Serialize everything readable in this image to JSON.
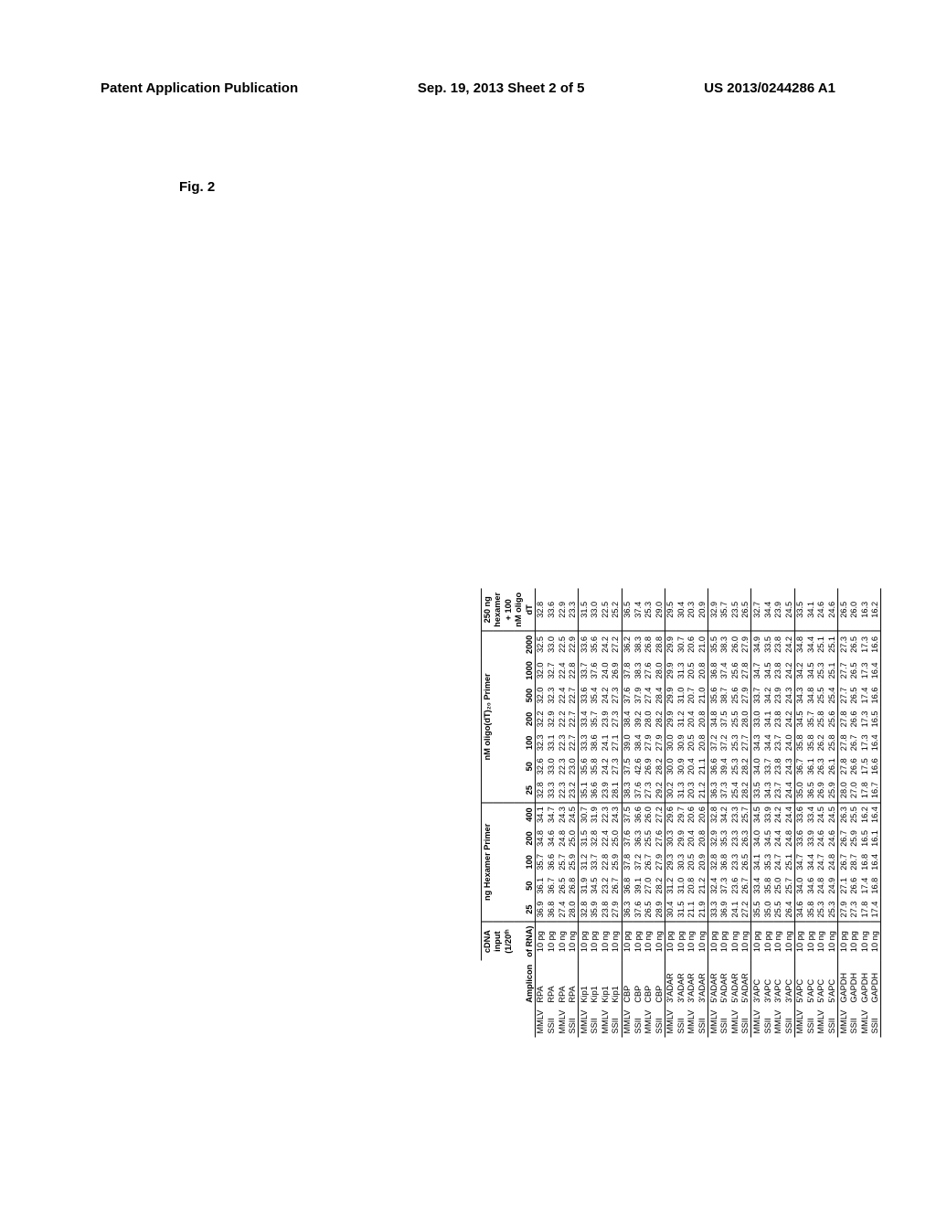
{
  "header": {
    "left": "Patent Application Publication",
    "center": "Sep. 19, 2013  Sheet 2 of 5",
    "right": "US 2013/0244286 A1"
  },
  "figure_label": "Fig. 2",
  "table": {
    "section_headers": {
      "hexamer": "ng Hexamer Primer",
      "oligo": "nM oligo(dT)₂₀ Primer",
      "combo_line1": "250 ng",
      "combo_line2": "hexamer",
      "combo_line3": "+ 100",
      "combo_line4": "nM oligo"
    },
    "col_labels": {
      "enzyme": "",
      "amplicon": "Amplicon",
      "input_l1": "cDNA",
      "input_l2": "input",
      "input_l3": "(1/20ᵗʰ",
      "input_l4": "of RNA)",
      "hex": [
        "25",
        "50",
        "100",
        "200",
        "400"
      ],
      "oligo": [
        "25",
        "50",
        "100",
        "200",
        "500",
        "1000",
        "2000"
      ],
      "combo": "dT"
    },
    "groups": [
      {
        "rows": [
          {
            "e": "MMLV",
            "a": "RPA",
            "i": "10 pg",
            "h": [
              "36.9",
              "36.1",
              "35.7",
              "34.8",
              "34.1"
            ],
            "o": [
              "32.8",
              "32.6",
              "32.3",
              "32.2",
              "32.0",
              "32.0",
              "32.5"
            ],
            "c": "32.8"
          },
          {
            "e": "SSII",
            "a": "RPA",
            "i": "10 pg",
            "h": [
              "36.8",
              "36.7",
              "36.6",
              "34.6",
              "34.7"
            ],
            "o": [
              "33.3",
              "33.0",
              "33.1",
              "32.9",
              "32.3",
              "32.7",
              "33.0"
            ],
            "c": "33.6"
          },
          {
            "e": "MMLV",
            "a": "RPA",
            "i": "10 ng",
            "h": [
              "27.4",
              "26.5",
              "25.7",
              "24.8",
              "24.3"
            ],
            "o": [
              "22.3",
              "22.3",
              "22.3",
              "22.2",
              "22.4",
              "22.4",
              "22.5"
            ],
            "c": "22.9"
          },
          {
            "e": "SSII",
            "a": "RPA",
            "i": "10 ng",
            "h": [
              "28.0",
              "26.8",
              "25.9",
              "25.0",
              "24.5"
            ],
            "o": [
              "23.2",
              "23.0",
              "22.7",
              "22.7",
              "22.7",
              "22.8",
              "22.9"
            ],
            "c": "23.3"
          }
        ]
      },
      {
        "rows": [
          {
            "e": "MMLV",
            "a": "Kip1",
            "i": "10 pg",
            "h": [
              "32.8",
              "31.9",
              "31.2",
              "31.5",
              "30.7"
            ],
            "o": [
              "35.1",
              "35.6",
              "33.3",
              "33.4",
              "33.6",
              "33.7",
              "33.6"
            ],
            "c": "31.5"
          },
          {
            "e": "SSII",
            "a": "Kip1",
            "i": "10 pg",
            "h": [
              "35.9",
              "34.5",
              "33.7",
              "32.8",
              "31.9"
            ],
            "o": [
              "36.6",
              "35.8",
              "38.6",
              "35.7",
              "35.4",
              "37.6",
              "35.6"
            ],
            "c": "33.0"
          },
          {
            "e": "MMLV",
            "a": "Kip1",
            "i": "10 ng",
            "h": [
              "23.8",
              "23.2",
              "22.8",
              "22.4",
              "22.3"
            ],
            "o": [
              "23.9",
              "24.2",
              "24.1",
              "23.9",
              "24.2",
              "24.0",
              "24.2"
            ],
            "c": "22.5"
          },
          {
            "e": "SSII",
            "a": "Kip1",
            "i": "10 ng",
            "h": [
              "27.9",
              "26.7",
              "25.9",
              "25.0",
              "24.3"
            ],
            "o": [
              "28.1",
              "27.3",
              "27.1",
              "27.3",
              "27.3",
              "26.9",
              "27.2"
            ],
            "c": "25.2"
          }
        ]
      },
      {
        "rows": [
          {
            "e": "MMLV",
            "a": "CBP",
            "i": "10 pg",
            "h": [
              "36.3",
              "36.8",
              "37.8",
              "37.6",
              "37.5"
            ],
            "o": [
              "38.3",
              "37.5",
              "39.0",
              "38.4",
              "37.6",
              "37.8",
              "36.2"
            ],
            "c": "36.5"
          },
          {
            "e": "SSII",
            "a": "CBP",
            "i": "10 pg",
            "h": [
              "37.6",
              "39.1",
              "37.2",
              "36.3",
              "36.6"
            ],
            "o": [
              "37.6",
              "42.6",
              "38.4",
              "39.2",
              "37.9",
              "38.3",
              "38.3"
            ],
            "c": "37.4"
          },
          {
            "e": "MMLV",
            "a": "CBP",
            "i": "10 ng",
            "h": [
              "26.5",
              "27.0",
              "26.7",
              "25.5",
              "26.0"
            ],
            "o": [
              "27.3",
              "26.9",
              "27.9",
              "28.0",
              "27.4",
              "27.6",
              "26.8"
            ],
            "c": "25.3"
          },
          {
            "e": "SSII",
            "a": "CBP",
            "i": "10 ng",
            "h": [
              "28.9",
              "28.2",
              "27.9",
              "27.6",
              "27.2"
            ],
            "o": [
              "29.2",
              "28.2",
              "27.9",
              "28.2",
              "28.4",
              "28.0",
              "28.8"
            ],
            "c": "29.0"
          }
        ]
      },
      {
        "rows": [
          {
            "e": "MMLV",
            "a": "3'ADAR",
            "i": "10 pg",
            "h": [
              "30.4",
              "31.2",
              "29.3",
              "30.3",
              "29.6"
            ],
            "o": [
              "30.2",
              "30.0",
              "30.0",
              "29.9",
              "29.9",
              "29.9",
              "29.9"
            ],
            "c": "29.5"
          },
          {
            "e": "SSII",
            "a": "3'ADAR",
            "i": "10 pg",
            "h": [
              "31.5",
              "31.0",
              "30.3",
              "29.9",
              "29.7"
            ],
            "o": [
              "31.3",
              "30.9",
              "30.9",
              "31.2",
              "31.0",
              "31.3",
              "30.7"
            ],
            "c": "30.4"
          },
          {
            "e": "MMLV",
            "a": "3'ADAR",
            "i": "10 ng",
            "h": [
              "21.1",
              "20.8",
              "20.5",
              "20.4",
              "20.6"
            ],
            "o": [
              "20.3",
              "20.4",
              "20.5",
              "20.4",
              "20.7",
              "20.5",
              "20.6"
            ],
            "c": "20.3"
          },
          {
            "e": "SSII",
            "a": "3'ADAR",
            "i": "10 ng",
            "h": [
              "21.9",
              "21.2",
              "20.9",
              "20.8",
              "20.6"
            ],
            "o": [
              "21.2",
              "21.1",
              "20.8",
              "20.8",
              "21.0",
              "20.8",
              "21.0"
            ],
            "c": "20.9"
          }
        ]
      },
      {
        "rows": [
          {
            "e": "MMLV",
            "a": "5'ADAR",
            "i": "10 pg",
            "h": [
              "33.3",
              "32.4",
              "32.8",
              "32.9",
              "32.8"
            ],
            "o": [
              "36.3",
              "36.6",
              "37.2",
              "34.8",
              "35.6",
              "36.8",
              "35.5"
            ],
            "c": "32.9"
          },
          {
            "e": "SSII",
            "a": "5'ADAR",
            "i": "10 pg",
            "h": [
              "36.9",
              "37.3",
              "36.8",
              "35.3",
              "34.2"
            ],
            "o": [
              "37.3",
              "39.4",
              "37.2",
              "37.5",
              "38.7",
              "37.4",
              "38.3"
            ],
            "c": "35.7"
          },
          {
            "e": "MMLV",
            "a": "5'ADAR",
            "i": "10 ng",
            "h": [
              "24.1",
              "23.6",
              "23.3",
              "23.3",
              "23.3"
            ],
            "o": [
              "25.4",
              "25.3",
              "25.3",
              "25.5",
              "25.6",
              "25.6",
              "26.0"
            ],
            "c": "23.5"
          },
          {
            "e": "SSII",
            "a": "5'ADAR",
            "i": "10 ng",
            "h": [
              "27.2",
              "26.7",
              "26.5",
              "26.3",
              "25.7"
            ],
            "o": [
              "28.2",
              "28.2",
              "27.7",
              "28.0",
              "27.9",
              "27.8",
              "27.9"
            ],
            "c": "26.5"
          }
        ]
      },
      {
        "rows": [
          {
            "e": "MMLV",
            "a": "3'APC",
            "i": "10 pg",
            "h": [
              "35.5",
              "33.4",
              "34.1",
              "34.0",
              "34.5"
            ],
            "o": [
              "33.5",
              "34.0",
              "34.3",
              "33.0",
              "33.7",
              "34.7",
              "34.9"
            ],
            "c": "32.7"
          },
          {
            "e": "SSII",
            "a": "3'APC",
            "i": "10 pg",
            "h": [
              "35.0",
              "35.8",
              "35.3",
              "34.5",
              "33.9"
            ],
            "o": [
              "34.3",
              "33.7",
              "34.4",
              "34.1",
              "34.2",
              "34.5",
              "33.5"
            ],
            "c": "34.4"
          },
          {
            "e": "MMLV",
            "a": "3'APC",
            "i": "10 ng",
            "h": [
              "25.5",
              "25.0",
              "24.7",
              "24.4",
              "24.2"
            ],
            "o": [
              "23.7",
              "23.8",
              "23.7",
              "23.8",
              "23.9",
              "23.8",
              "23.8"
            ],
            "c": "23.9"
          },
          {
            "e": "SSII",
            "a": "3'APC",
            "i": "10 ng",
            "h": [
              "26.4",
              "25.7",
              "25.1",
              "24.8",
              "24.4"
            ],
            "o": [
              "24.4",
              "24.3",
              "24.0",
              "24.2",
              "24.3",
              "24.2",
              "24.2"
            ],
            "c": "24.5"
          }
        ]
      },
      {
        "rows": [
          {
            "e": "MMLV",
            "a": "5'APC",
            "i": "10 pg",
            "h": [
              "34.6",
              "34.0",
              "34.7",
              "33.6",
              "33.6"
            ],
            "o": [
              "35.0",
              "36.7",
              "35.8",
              "34.5",
              "34.3",
              "34.2",
              "34.8"
            ],
            "c": "33.5"
          },
          {
            "e": "SSII",
            "a": "5'APC",
            "i": "10 pg",
            "h": [
              "35.8",
              "34.6",
              "34.4",
              "33.9",
              "33.4"
            ],
            "o": [
              "36.5",
              "36.1",
              "35.8",
              "35.7",
              "34.8",
              "34.5",
              "34.4"
            ],
            "c": "34.1"
          },
          {
            "e": "MMLV",
            "a": "5'APC",
            "i": "10 ng",
            "h": [
              "25.3",
              "24.8",
              "24.7",
              "24.6",
              "24.5"
            ],
            "o": [
              "26.9",
              "26.3",
              "26.2",
              "25.8",
              "25.5",
              "25.3",
              "25.1"
            ],
            "c": "24.6"
          },
          {
            "e": "SSII",
            "a": "5'APC",
            "i": "10 ng",
            "h": [
              "25.3",
              "24.9",
              "24.8",
              "24.6",
              "24.5"
            ],
            "o": [
              "25.9",
              "26.1",
              "25.8",
              "25.6",
              "25.4",
              "25.1",
              "25.1"
            ],
            "c": "24.6"
          }
        ]
      },
      {
        "rows": [
          {
            "e": "MMLV",
            "a": "GAPDH",
            "i": "10 pg",
            "h": [
              "27.9",
              "27.1",
              "26.7",
              "26.7",
              "26.3"
            ],
            "o": [
              "28.0",
              "27.8",
              "27.8",
              "27.8",
              "27.7",
              "27.7",
              "27.3"
            ],
            "c": "26.5"
          },
          {
            "e": "SSII",
            "a": "GAPDH",
            "i": "10 pg",
            "h": [
              "27.3",
              "26.6",
              "28.7",
              "25.9",
              "25.5"
            ],
            "o": [
              "27.0",
              "26.6",
              "26.7",
              "26.6",
              "26.5",
              "26.5",
              "26.5"
            ],
            "c": "26.0"
          },
          {
            "e": "MMLV",
            "a": "GAPDH",
            "i": "10 ng",
            "h": [
              "17.8",
              "17.4",
              "16.8",
              "16.5",
              "16.2"
            ],
            "o": [
              "17.8",
              "17.5",
              "17.3",
              "17.3",
              "17.4",
              "17.3",
              "17.3"
            ],
            "c": "16.3"
          },
          {
            "e": "SSII",
            "a": "GAPDH",
            "i": "10 ng",
            "h": [
              "17.4",
              "16.8",
              "16.4",
              "16.1",
              "16.4"
            ],
            "o": [
              "16.7",
              "16.6",
              "16.4",
              "16.5",
              "16.6",
              "16.4",
              "16.6"
            ],
            "c": "16.2"
          }
        ]
      }
    ]
  }
}
